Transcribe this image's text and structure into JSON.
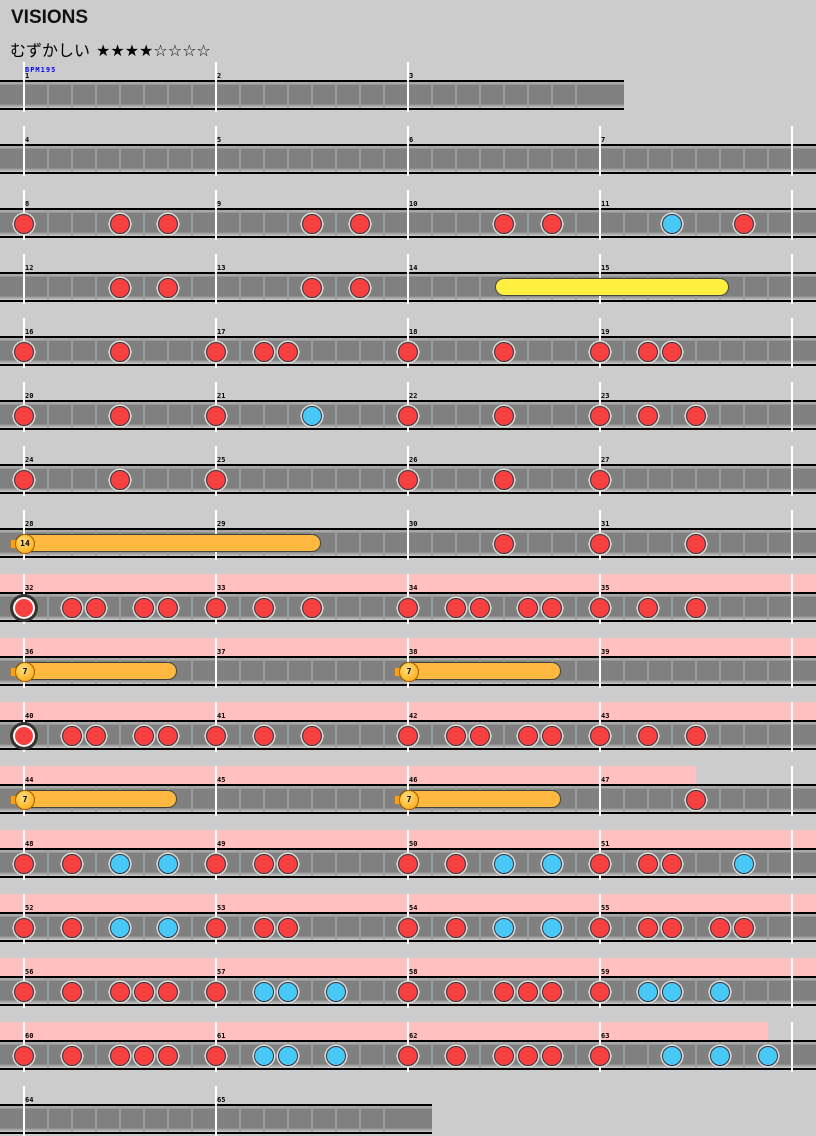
{
  "title": "VISIONS",
  "difficulty": "むずかしい",
  "stars": "★★★★☆☆☆☆",
  "star_level": 4,
  "star_max": 8,
  "bpm_label": "BPM195",
  "colors": {
    "don": "#f84040",
    "ka": "#48c8f8",
    "roll": "#fff040",
    "balloon": "#ffb840",
    "gogo": "#ffc0c0",
    "lane": "#808080"
  },
  "legend": {
    "0": "empty",
    "d": "don",
    "k": "ka",
    "D": "big-don"
  },
  "measures": [
    {
      "num": "1",
      "notes": "00000000"
    },
    {
      "num": "2",
      "notes": "00000000"
    },
    {
      "num": "3",
      "notes": "00000000"
    },
    {
      "num": "4",
      "notes": "00000000"
    },
    {
      "num": "5",
      "notes": "00000000"
    },
    {
      "num": "6",
      "notes": "00000000"
    },
    {
      "num": "7",
      "notes": "00000000"
    },
    {
      "num": "8",
      "notes": "d000d0d0"
    },
    {
      "num": "9",
      "notes": "0000d0d0"
    },
    {
      "num": "10",
      "notes": "0000d0d0"
    },
    {
      "num": "11",
      "notes": "000k00d0"
    },
    {
      "num": "12",
      "notes": "0000d0d0"
    },
    {
      "num": "13",
      "notes": "0000d0d0"
    },
    {
      "num": "14",
      "notes": "00000000"
    },
    {
      "num": "15",
      "notes": "00000000"
    },
    {
      "num": "16",
      "notes": "d000d000"
    },
    {
      "num": "17",
      "notes": "d0dd0000"
    },
    {
      "num": "18",
      "notes": "d000d000"
    },
    {
      "num": "19",
      "notes": "d0dd0000"
    },
    {
      "num": "20",
      "notes": "d000d000"
    },
    {
      "num": "21",
      "notes": "d000k000"
    },
    {
      "num": "22",
      "notes": "d000d000"
    },
    {
      "num": "23",
      "notes": "d0d0d000"
    },
    {
      "num": "24",
      "notes": "d000d000"
    },
    {
      "num": "25",
      "notes": "d0000000"
    },
    {
      "num": "26",
      "notes": "d000d000"
    },
    {
      "num": "27",
      "notes": "d0000000"
    },
    {
      "num": "28",
      "notes": "00000000"
    },
    {
      "num": "29",
      "notes": "00000000"
    },
    {
      "num": "30",
      "notes": "0000d000"
    },
    {
      "num": "31",
      "notes": "d000d000"
    },
    {
      "num": "32",
      "notes": "D0dd0dd0",
      "gogo": 8
    },
    {
      "num": "33",
      "notes": "d0d0d000",
      "gogo": 8
    },
    {
      "num": "34",
      "notes": "d0dd0dd0",
      "gogo": 8
    },
    {
      "num": "35",
      "notes": "d0d0d000",
      "gogo": 8
    },
    {
      "num": "36",
      "notes": "00000000",
      "gogo": 8
    },
    {
      "num": "37",
      "notes": "00000000",
      "gogo": 8
    },
    {
      "num": "38",
      "notes": "00000000",
      "gogo": 8
    },
    {
      "num": "39",
      "notes": "00000000",
      "gogo": 8
    },
    {
      "num": "40",
      "notes": "D0dd0dd0",
      "gogo": 8
    },
    {
      "num": "41",
      "notes": "d0d0d000",
      "gogo": 8
    },
    {
      "num": "42",
      "notes": "d0dd0dd0",
      "gogo": 8
    },
    {
      "num": "43",
      "notes": "d0d0d000",
      "gogo": 8
    },
    {
      "num": "44",
      "notes": "00000000",
      "gogo": 8
    },
    {
      "num": "45",
      "notes": "00000000",
      "gogo": 8
    },
    {
      "num": "46",
      "notes": "00000000",
      "gogo": 8
    },
    {
      "num": "47",
      "notes": "0000d000",
      "gogo": 4
    },
    {
      "num": "48",
      "notes": "d0d0k0k0",
      "gogo": 8
    },
    {
      "num": "49",
      "notes": "d0dd0000",
      "gogo": 8
    },
    {
      "num": "50",
      "notes": "d0d0k0k0",
      "gogo": 8
    },
    {
      "num": "51",
      "notes": "d0dd00k0",
      "gogo": 8
    },
    {
      "num": "52",
      "notes": "d0d0k0k0",
      "gogo": 8
    },
    {
      "num": "53",
      "notes": "d0dd0000",
      "gogo": 8
    },
    {
      "num": "54",
      "notes": "d0d0k0k0",
      "gogo": 8
    },
    {
      "num": "55",
      "notes": "d0dd0dd0",
      "gogo": 8
    },
    {
      "num": "56",
      "notes": "d0d0ddd0",
      "gogo": 8
    },
    {
      "num": "57",
      "notes": "d0kk0k00",
      "gogo": 8
    },
    {
      "num": "58",
      "notes": "d0d0ddd0",
      "gogo": 8
    },
    {
      "num": "59",
      "notes": "d0kk0k00",
      "gogo": 8
    },
    {
      "num": "60",
      "notes": "d0d0ddd0",
      "gogo": 8
    },
    {
      "num": "61",
      "notes": "d0kk0k00",
      "gogo": 8
    },
    {
      "num": "62",
      "notes": "d0d0ddd0",
      "gogo": 8
    },
    {
      "num": "63",
      "notes": "d00k0k0k",
      "gogo": 7
    },
    {
      "num": "64",
      "notes": "00000000"
    },
    {
      "num": "65",
      "notes": "00000000"
    }
  ],
  "rolls": [
    {
      "type": "roll",
      "start": [
        14,
        4
      ],
      "end": [
        15,
        5
      ]
    },
    {
      "type": "balloon",
      "count": "14",
      "start": [
        28,
        0
      ],
      "end": [
        29,
        4
      ]
    },
    {
      "type": "balloon",
      "count": "7",
      "start": [
        36,
        0
      ],
      "end": [
        36,
        6
      ]
    },
    {
      "type": "balloon",
      "count": "7",
      "start": [
        38,
        0
      ],
      "end": [
        38,
        6
      ]
    },
    {
      "type": "balloon",
      "count": "7",
      "start": [
        44,
        0
      ],
      "end": [
        44,
        6
      ]
    },
    {
      "type": "balloon",
      "count": "7",
      "start": [
        46,
        0
      ],
      "end": [
        46,
        6
      ]
    }
  ]
}
